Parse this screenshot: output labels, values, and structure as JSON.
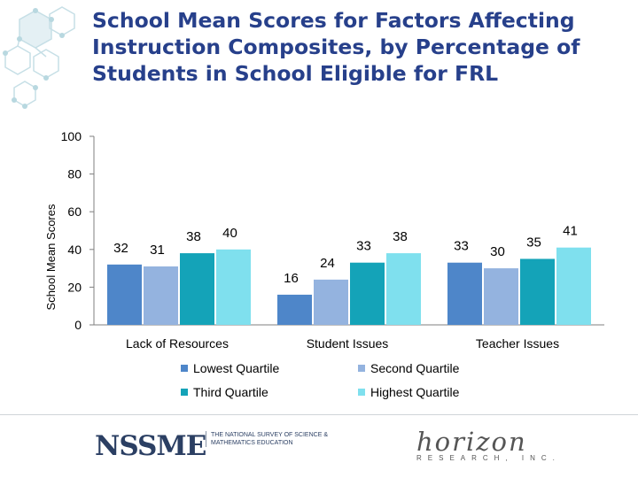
{
  "title": "School Mean Scores for Factors Affecting Instruction Composites, by Percentage of Students in School Eligible for FRL",
  "colors": {
    "title": "#27408b",
    "axis": "#7f7f7f",
    "text": "#000000"
  },
  "chart_data": {
    "type": "bar",
    "title": "School Mean Scores for Factors Affecting Instruction Composites, by Percentage of Students in School Eligible for FRL",
    "xlabel": "",
    "ylabel": "School Mean Scores",
    "ylim": [
      0,
      100
    ],
    "yticks": [
      "0",
      "20",
      "40",
      "60",
      "80",
      "100"
    ],
    "grid": false,
    "legend": "bottom",
    "categories": [
      "Lack of Resources",
      "Student Issues",
      "Teacher Issues"
    ],
    "series": [
      {
        "name": "Lowest Quartile",
        "color": "#4e86c9",
        "values": [
          32,
          16,
          33
        ]
      },
      {
        "name": "Second Quartile",
        "color": "#94b3df",
        "values": [
          31,
          24,
          30
        ]
      },
      {
        "name": "Third Quartile",
        "color": "#14a3b8",
        "values": [
          38,
          33,
          35
        ]
      },
      {
        "name": "Highest Quartile",
        "color": "#7fe0ee",
        "values": [
          40,
          38,
          41
        ]
      }
    ]
  },
  "footer": {
    "nssme_logo": "NSSME",
    "nssme_tagline": "The National Survey of Science & Mathematics Education",
    "horizon_logo": "horizon",
    "horizon_subtitle": "RESEARCH, INC."
  }
}
